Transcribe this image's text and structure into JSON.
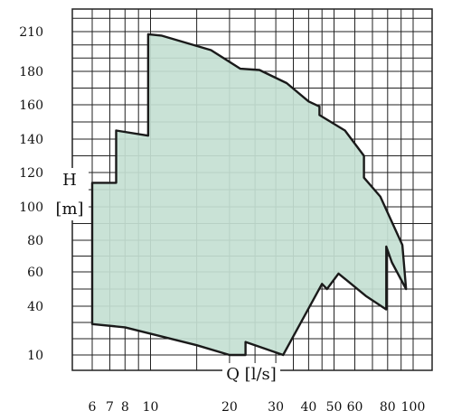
{
  "chart_data": {
    "type": "area",
    "title": "",
    "xlabel": "Q [l/s]",
    "ylabel_line1": "H",
    "ylabel_line2": "[m]",
    "x_scale": "log",
    "y_scale": "nonlinear",
    "x_tick_labels": [
      "6",
      "7",
      "8",
      "10",
      "20",
      "30",
      "40",
      "50",
      "60",
      "80",
      "100"
    ],
    "x_tick_values": [
      6,
      7,
      8,
      10,
      20,
      30,
      40,
      50,
      60,
      80,
      100
    ],
    "y_tick_labels": [
      "10",
      "40",
      "60",
      "80",
      "100",
      "120",
      "140",
      "160",
      "180",
      "210"
    ],
    "y_tick_values": [
      10,
      40,
      60,
      80,
      100,
      120,
      140,
      160,
      180,
      210
    ],
    "grid": true,
    "fill_color": "#c4dfd2",
    "outline_color": "#1a1a1a",
    "envelope": [
      [
        6,
        29
      ],
      [
        6,
        114
      ],
      [
        7.4,
        114
      ],
      [
        7.4,
        145
      ],
      [
        9.8,
        142
      ],
      [
        9.8,
        208
      ],
      [
        11,
        207
      ],
      [
        17,
        196
      ],
      [
        22,
        182
      ],
      [
        26,
        181
      ],
      [
        33,
        173
      ],
      [
        40,
        162
      ],
      [
        44,
        159
      ],
      [
        44,
        154
      ],
      [
        55,
        145
      ],
      [
        65,
        130
      ],
      [
        65,
        117
      ],
      [
        75,
        106
      ],
      [
        91,
        77
      ],
      [
        94,
        50
      ],
      [
        83,
        66
      ],
      [
        79,
        76
      ],
      [
        79,
        38
      ],
      [
        66,
        46
      ],
      [
        52,
        59
      ],
      [
        47,
        50
      ],
      [
        45,
        53
      ],
      [
        32,
        10
      ],
      [
        23,
        18
      ],
      [
        23,
        10
      ],
      [
        20,
        10
      ],
      [
        15,
        16
      ],
      [
        8,
        27
      ],
      [
        6,
        29
      ]
    ]
  }
}
